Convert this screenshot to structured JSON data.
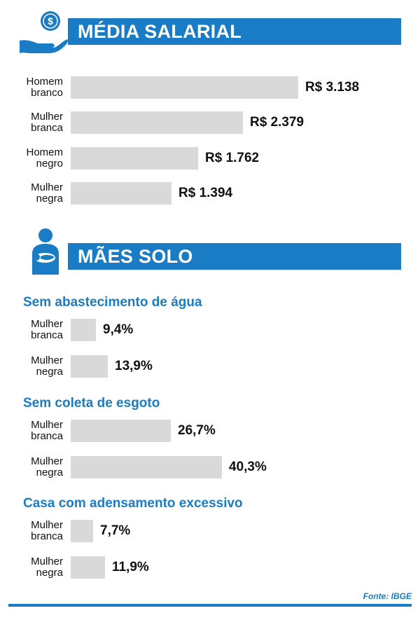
{
  "colors": {
    "accent": "#1a7cc5",
    "bar": "#d9d9d9"
  },
  "sections": {
    "salary": {
      "title": "MÉDIA SALARIAL",
      "icon": "hand-coins-icon"
    },
    "moms": {
      "title": "MÃES SOLO",
      "icon": "mother-baby-icon"
    }
  },
  "source": "Fonte: IBGE",
  "chart_data": [
    {
      "type": "bar",
      "orientation": "horizontal",
      "title": "MÉDIA SALARIAL",
      "unit": "R$",
      "categories": [
        [
          "Homem",
          "branco"
        ],
        [
          "Mulher",
          "branca"
        ],
        [
          "Homem",
          "negro"
        ],
        [
          "Mulher",
          "negra"
        ]
      ],
      "values": [
        3138,
        2379,
        1762,
        1394
      ],
      "labels": [
        "R$ 3.138",
        "R$ 2.379",
        "R$ 1.762",
        "R$ 1.394"
      ]
    },
    {
      "type": "bar",
      "orientation": "horizontal",
      "title": "Sem abastecimento de água",
      "unit": "%",
      "categories": [
        [
          "Mulher",
          "branca"
        ],
        [
          "Mulher",
          "negra"
        ]
      ],
      "values": [
        9.4,
        13.9
      ],
      "labels": [
        "9,4%",
        "13,9%"
      ]
    },
    {
      "type": "bar",
      "orientation": "horizontal",
      "title": "Sem coleta de esgoto",
      "unit": "%",
      "categories": [
        [
          "Mulher",
          "branca"
        ],
        [
          "Mulher",
          "negra"
        ]
      ],
      "values": [
        26.7,
        40.3
      ],
      "labels": [
        "26,7%",
        "40,3%"
      ]
    },
    {
      "type": "bar",
      "orientation": "horizontal",
      "title": "Casa com adensamento excessivo",
      "unit": "%",
      "categories": [
        [
          "Mulher",
          "branca"
        ],
        [
          "Mulher",
          "negra"
        ]
      ],
      "values": [
        7.7,
        11.9
      ],
      "labels": [
        "7,7%",
        "11,9%"
      ]
    }
  ]
}
